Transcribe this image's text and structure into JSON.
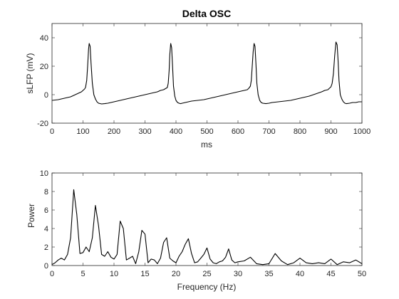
{
  "chart_data": [
    {
      "type": "line",
      "title": "Delta OSC",
      "xlabel": "ms",
      "ylabel": "sLFP (mV)",
      "xlim": [
        0,
        1000
      ],
      "ylim": [
        -20,
        50
      ],
      "xticks": [
        0,
        100,
        200,
        300,
        400,
        500,
        600,
        700,
        800,
        900,
        1000
      ],
      "yticks": [
        -20,
        0,
        20,
        40
      ],
      "grid": false,
      "series": [
        {
          "color": "#000000",
          "x": [
            0,
            20,
            40,
            60,
            80,
            95,
            100,
            105,
            108,
            112,
            115,
            118,
            120,
            123,
            126,
            130,
            135,
            140,
            145,
            150,
            160,
            170,
            180,
            200,
            220,
            240,
            260,
            280,
            300,
            320,
            340,
            350,
            360,
            368,
            372,
            375,
            378,
            380,
            383,
            386,
            389,
            392,
            396,
            400,
            405,
            410,
            415,
            420,
            430,
            440,
            450,
            470,
            490,
            510,
            530,
            550,
            570,
            590,
            610,
            620,
            630,
            635,
            640,
            643,
            646,
            649,
            652,
            655,
            658,
            661,
            665,
            670,
            675,
            680,
            690,
            700,
            710,
            730,
            750,
            770,
            790,
            810,
            830,
            850,
            870,
            880,
            890,
            895,
            900,
            904,
            908,
            912,
            916,
            920,
            923,
            926,
            930,
            935,
            940,
            945,
            950,
            960,
            970,
            980,
            990,
            1000
          ],
          "y": [
            -4,
            -3.5,
            -2.5,
            -1.5,
            0.5,
            2,
            3,
            4,
            5,
            10,
            20,
            32,
            36,
            34,
            22,
            8,
            0,
            -3,
            -5,
            -6,
            -6.5,
            -6.3,
            -6,
            -5,
            -4,
            -3,
            -2,
            -1,
            0,
            1,
            2,
            3,
            3.5,
            4.5,
            5,
            8,
            17,
            28,
            36,
            33,
            20,
            6,
            -1,
            -4,
            -5.5,
            -6,
            -6.3,
            -6,
            -5.5,
            -5,
            -4.5,
            -4,
            -3.5,
            -2.5,
            -1.5,
            -0.5,
            0.5,
            1.5,
            2.5,
            3,
            3.5,
            4.5,
            6,
            10,
            20,
            30,
            36,
            34,
            22,
            8,
            0,
            -4,
            -5.5,
            -6,
            -6.3,
            -6,
            -5.5,
            -5,
            -4.5,
            -4,
            -3,
            -2,
            -1,
            0.5,
            2,
            3,
            3.5,
            4.5,
            5.5,
            8,
            15,
            27,
            37,
            35,
            24,
            10,
            0,
            -3,
            -5,
            -6,
            -6.3,
            -6,
            -5.5,
            -5.5,
            -5,
            -5
          ]
        }
      ]
    },
    {
      "type": "line",
      "title": "",
      "xlabel": "Frequency (Hz)",
      "ylabel": "Power",
      "xlim": [
        0,
        50
      ],
      "ylim": [
        0,
        10
      ],
      "xticks": [
        0,
        5,
        10,
        15,
        20,
        25,
        30,
        35,
        40,
        45,
        50
      ],
      "yticks": [
        0,
        2,
        4,
        6,
        8,
        10
      ],
      "grid": false,
      "series": [
        {
          "color": "#000000",
          "x": [
            0,
            0.5,
            1,
            1.5,
            2,
            2.5,
            3,
            3.5,
            4,
            4.5,
            5,
            5.5,
            6,
            6.5,
            7,
            7.5,
            8,
            8.5,
            9,
            9.5,
            10,
            10.5,
            11,
            11.5,
            12,
            12.5,
            13,
            13.5,
            14,
            14.5,
            15,
            15.5,
            16,
            16.5,
            17,
            17.5,
            18,
            18.5,
            19,
            19.5,
            20,
            20.5,
            21,
            21.5,
            22,
            22.5,
            23,
            23.5,
            24,
            24.5,
            25,
            25.5,
            26,
            26.5,
            27,
            27.5,
            28,
            28.5,
            29,
            29.5,
            30,
            31,
            32,
            33,
            34,
            35,
            36,
            37,
            38,
            39,
            40,
            41,
            42,
            43,
            44,
            45,
            46,
            47,
            48,
            49,
            50
          ],
          "y": [
            0.1,
            0.3,
            0.6,
            0.8,
            0.6,
            1.2,
            3.0,
            8.2,
            5.5,
            1.3,
            1.4,
            2.0,
            1.5,
            3.0,
            6.5,
            4.3,
            1.2,
            1.0,
            1.5,
            0.9,
            0.7,
            1.2,
            4.8,
            4.0,
            0.6,
            0.8,
            1.0,
            0.2,
            1.5,
            3.8,
            3.4,
            0.3,
            0.7,
            0.6,
            0.2,
            0.8,
            2.5,
            3.0,
            0.8,
            0.5,
            0.3,
            1.0,
            1.5,
            2.3,
            2.9,
            1.3,
            0.3,
            0.4,
            0.8,
            1.2,
            1.9,
            0.7,
            0.3,
            0.2,
            0.4,
            0.5,
            0.9,
            1.8,
            0.6,
            0.3,
            0.4,
            0.5,
            0.9,
            0.2,
            0.1,
            0.2,
            1.3,
            0.5,
            0.1,
            0.3,
            0.8,
            0.3,
            0.2,
            0.3,
            0.2,
            0.7,
            0.1,
            0.4,
            0.3,
            0.6,
            0.2
          ]
        }
      ]
    }
  ]
}
